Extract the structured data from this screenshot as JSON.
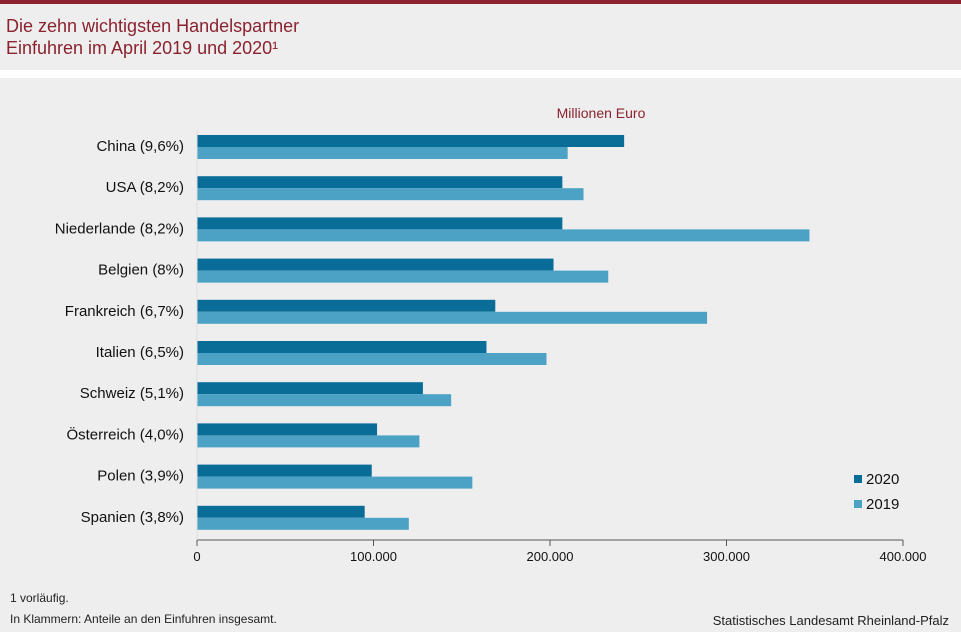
{
  "header": {
    "title_line1": "Die zehn wichtigsten Handelspartner",
    "title_line2": "Einfuhren im April 2019 und 2020¹"
  },
  "colors": {
    "accent": "#8b2230",
    "series_2020": "#0a6d98",
    "series_2019": "#4ba2c4",
    "axis": "#555555"
  },
  "chart_data": {
    "type": "bar",
    "orientation": "horizontal",
    "unit_label": "Millionen  Euro",
    "categories": [
      "China (9,6%)",
      "USA (8,2%)",
      "Niederlande (8,2%)",
      "Belgien (8%)",
      "Frankreich (6,7%)",
      "Italien (6,5%)",
      "Schweiz (5,1%)",
      "Österreich (4,0%)",
      "Polen (3,9%)",
      "Spanien (3,8%)"
    ],
    "series": [
      {
        "name": "2020",
        "values": [
          242000,
          207000,
          207000,
          202000,
          169000,
          164000,
          128000,
          102000,
          99000,
          95000
        ]
      },
      {
        "name": "2019",
        "values": [
          210000,
          219000,
          347000,
          233000,
          289000,
          198000,
          144000,
          126000,
          156000,
          120000
        ]
      }
    ],
    "xlim": [
      0,
      400000
    ],
    "x_ticks": [
      "0",
      "100.000",
      "200.000",
      "300.000",
      "400.000"
    ],
    "legend_position": "bottom-right",
    "grid": false
  },
  "footer": {
    "footnote1": "1 vorläufig.",
    "footnote2": "In Klammern: Anteile an den Einfuhren  insgesamt.",
    "source": "Statistisches Landesamt Rheinland-Pfalz"
  }
}
